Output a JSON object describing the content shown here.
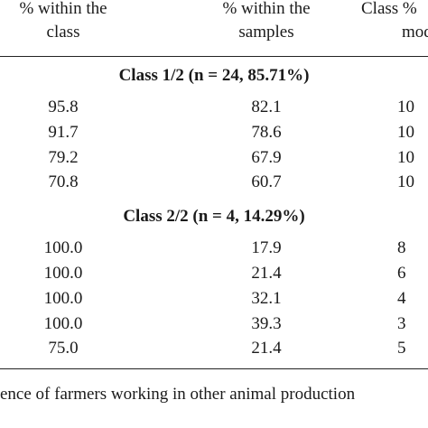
{
  "table": {
    "header": [
      [
        "% within the",
        "class"
      ],
      [
        "% within the",
        "samples"
      ],
      [
        "Class %",
        "mod"
      ]
    ],
    "groups": [
      {
        "title": "Class 1/2 (n = 24, 85.71%)",
        "rows": [
          [
            "95.8",
            "82.1",
            "10"
          ],
          [
            "91.7",
            "78.6",
            "10"
          ],
          [
            "79.2",
            "67.9",
            "10"
          ],
          [
            "70.8",
            "60.7",
            "10"
          ]
        ]
      },
      {
        "title": "Class 2/2 (n = 4, 14.29%)",
        "rows": [
          [
            "100.0",
            "17.9",
            "8"
          ],
          [
            "100.0",
            "21.4",
            "6"
          ],
          [
            "100.0",
            "32.1",
            "4"
          ],
          [
            "100.0",
            "39.3",
            "3"
          ],
          [
            "75.0",
            "21.4",
            "5"
          ]
        ]
      }
    ]
  },
  "caption": "ence of farmers working in other animal production"
}
